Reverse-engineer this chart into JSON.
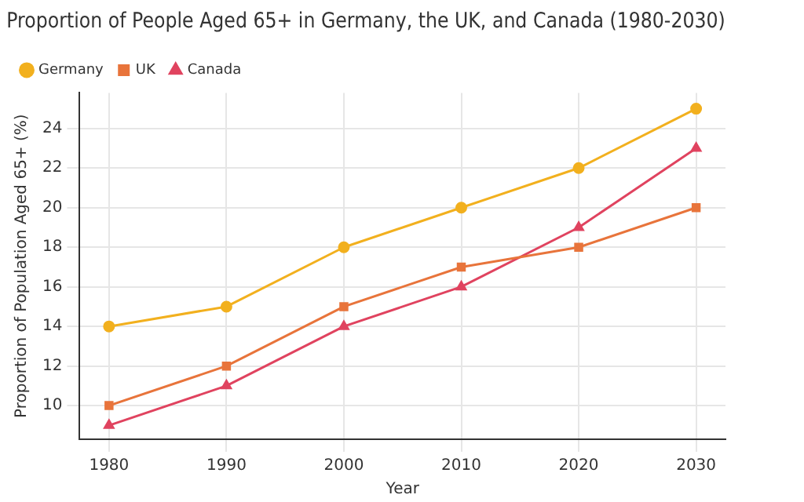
{
  "chart_data": {
    "type": "line",
    "title": "Proportion of People Aged 65+ in Germany, the UK, and Canada (1980-2030)",
    "xlabel": "Year",
    "ylabel": "Proportion of Population Aged 65+ (%)",
    "x": [
      1980,
      1990,
      2000,
      2010,
      2020,
      2030
    ],
    "series": [
      {
        "name": "Germany",
        "color": "#f2b01e",
        "marker": "circle",
        "values": [
          14,
          15,
          18,
          20,
          22,
          25
        ]
      },
      {
        "name": "UK",
        "color": "#e8743b",
        "marker": "square",
        "values": [
          10,
          12,
          15,
          17,
          18,
          20
        ]
      },
      {
        "name": "Canada",
        "color": "#e0435f",
        "marker": "triangle",
        "values": [
          9,
          11,
          14,
          16,
          19,
          23
        ]
      }
    ],
    "xlim": [
      1977.5,
      2032.5
    ],
    "xticks": [
      1980,
      1990,
      2000,
      2010,
      2020,
      2030
    ],
    "ylim": [
      8.3,
      25.8
    ],
    "yticks": [
      10,
      12,
      14,
      16,
      18,
      20,
      22,
      24
    ],
    "grid": true,
    "legend": "top left",
    "line_style": "solid"
  }
}
